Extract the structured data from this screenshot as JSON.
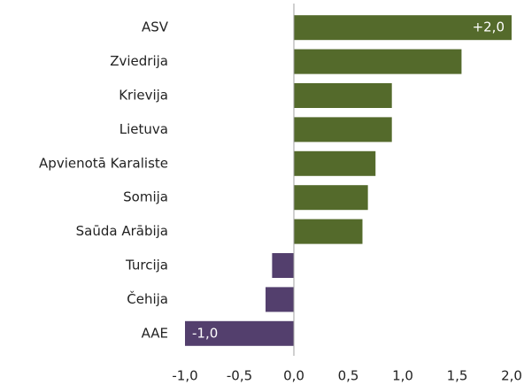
{
  "chart_data": {
    "type": "barh",
    "categories": [
      "ASV",
      "Zviedrija",
      "Krievija",
      "Lietuva",
      "Apvienotā Karaliste",
      "Somija",
      "Saūda Arābija",
      "Turcija",
      "Čehija",
      "AAE"
    ],
    "values": [
      2.0,
      1.54,
      0.9,
      0.9,
      0.75,
      0.68,
      0.63,
      -0.2,
      -0.26,
      -1.0
    ],
    "value_labels": [
      "+2,0",
      null,
      null,
      null,
      null,
      null,
      null,
      null,
      null,
      "-1,0"
    ],
    "color_positive": "#546a2b",
    "color_negative": "#533f6d",
    "xlim": [
      -1.0,
      2.0
    ],
    "xticks": [
      {
        "value": -1.0,
        "label": "-1,0"
      },
      {
        "value": -0.5,
        "label": "-0,5"
      },
      {
        "value": 0.0,
        "label": "0,0"
      },
      {
        "value": 0.5,
        "label": "0,5"
      },
      {
        "value": 1.0,
        "label": "1,0"
      },
      {
        "value": 1.5,
        "label": "1,5"
      },
      {
        "value": 2.0,
        "label": "2,0"
      }
    ],
    "grid": false
  }
}
